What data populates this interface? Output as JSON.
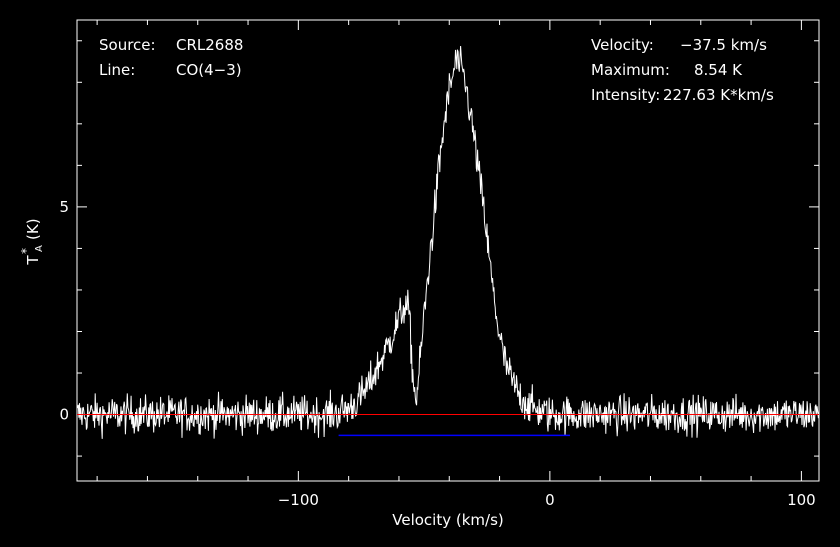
{
  "chart_data": {
    "type": "line",
    "xlabel": "Velocity (km/s)",
    "ylabel_main": "T",
    "ylabel_sub": "A",
    "ylabel_sup": "*",
    "ylabel_unit": "(K)",
    "xlim": [
      -188,
      107
    ],
    "ylim": [
      -1.6,
      9.5
    ],
    "xticks": [
      -100,
      0,
      100
    ],
    "xtick_labels": [
      "−100",
      "0",
      "100"
    ],
    "yticks": [
      0,
      5
    ],
    "ytick_labels": [
      "0",
      "5"
    ],
    "info_left": [
      {
        "label": "Source:",
        "value": "CRL2688"
      },
      {
        "label": "Line:",
        "value": "CO(4−3)"
      }
    ],
    "info_right": [
      {
        "label": "Velocity:",
        "value": "−37.5 km/s"
      },
      {
        "label": "Maximum:",
        "value": "8.54 K"
      },
      {
        "label": "Intensity:",
        "value": "227.63 K*km/s"
      }
    ],
    "profile": [
      [
        -188,
        0
      ],
      [
        -90,
        0
      ],
      [
        -84,
        0.05
      ],
      [
        -80,
        0.15
      ],
      [
        -76,
        0.35
      ],
      [
        -72,
        0.7
      ],
      [
        -68,
        1.2
      ],
      [
        -64,
        1.7
      ],
      [
        -60,
        2.3
      ],
      [
        -58,
        2.6
      ],
      [
        -56,
        2.5
      ],
      [
        -55,
        1.4
      ],
      [
        -54,
        0.6
      ],
      [
        -53,
        0.4
      ],
      [
        -52,
        1.0
      ],
      [
        -50,
        2.4
      ],
      [
        -48,
        3.6
      ],
      [
        -46,
        4.8
      ],
      [
        -44,
        6.0
      ],
      [
        -42,
        7.0
      ],
      [
        -40,
        7.8
      ],
      [
        -38,
        8.3
      ],
      [
        -37.5,
        8.54
      ],
      [
        -36,
        8.4
      ],
      [
        -34,
        8.1
      ],
      [
        -32,
        7.4
      ],
      [
        -30,
        6.6
      ],
      [
        -28,
        5.7
      ],
      [
        -26,
        4.8
      ],
      [
        -24,
        3.7
      ],
      [
        -22,
        2.7
      ],
      [
        -20,
        1.9
      ],
      [
        -18,
        1.3
      ],
      [
        -15,
        0.8
      ],
      [
        -12,
        0.45
      ],
      [
        -8,
        0.2
      ],
      [
        -4,
        0.08
      ],
      [
        0,
        0
      ],
      [
        107,
        0
      ]
    ],
    "noise_rms": 0.32,
    "baseline": {
      "value": 0,
      "color": "#ff0000"
    },
    "window": {
      "y": -0.5,
      "x_start": -84,
      "x_end": 8,
      "color": "#0000ff"
    },
    "spectrum_color": "#ffffff"
  }
}
